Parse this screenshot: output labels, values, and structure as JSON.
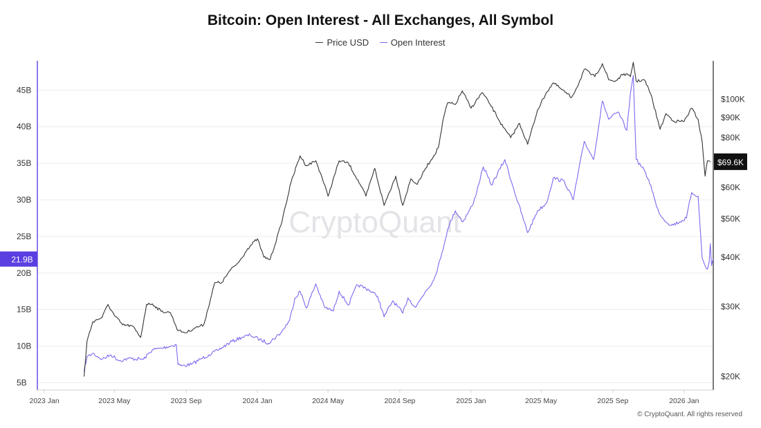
{
  "title": "Bitcoin: Open Interest - All Exchanges, All Symbol",
  "legend": [
    {
      "label": "Price USD",
      "color": "#333333"
    },
    {
      "label": "Open Interest",
      "color": "#7b68ee"
    }
  ],
  "watermark": "CryptoQuant",
  "footer": "© CryptoQuant. All rights reserved",
  "colors": {
    "price": "#333333",
    "oi": "#7b68ee",
    "oi_axis": "#6a4ce6",
    "oi_badge": "#5b3fe0",
    "price_badge": "#111111"
  },
  "chart_data": {
    "type": "line",
    "x_ticks": [
      "2023 Jan",
      "2023 May",
      "2023 Sep",
      "2024 Jan",
      "2024 May",
      "2024 Sep",
      "2025 Jan",
      "2025 May",
      "2025 Sep",
      "2026 Jan"
    ],
    "x_range": [
      "2022-12-20",
      "2026-02-20"
    ],
    "left_axis": {
      "series": "Open Interest",
      "ticks": [
        "5B",
        "10B",
        "15B",
        "20B",
        "25B",
        "30B",
        "35B",
        "40B",
        "45B"
      ],
      "tick_values": [
        5,
        10,
        15,
        20,
        25,
        30,
        35,
        40,
        45
      ],
      "range": [
        4,
        49
      ],
      "current": "21.9B"
    },
    "right_axis": {
      "series": "Price USD",
      "scale": "log",
      "ticks": [
        "$20K",
        "$30K",
        "$40K",
        "$50K",
        "$60K",
        "$80K",
        "$90K",
        "$100K"
      ],
      "tick_values": [
        20000,
        30000,
        40000,
        50000,
        60000,
        80000,
        90000,
        100000
      ],
      "range": [
        18500,
        125000
      ],
      "current": "$69.6K"
    },
    "series": [
      {
        "name": "Price USD",
        "axis": "right",
        "x": [
          "2023-03-10",
          "2023-03-15",
          "2023-03-25",
          "2023-04-10",
          "2023-04-20",
          "2023-05-01",
          "2023-05-15",
          "2023-06-01",
          "2023-06-15",
          "2023-06-25",
          "2023-07-05",
          "2023-07-20",
          "2023-08-05",
          "2023-08-18",
          "2023-09-01",
          "2023-09-15",
          "2023-10-01",
          "2023-10-20",
          "2023-11-01",
          "2023-11-15",
          "2023-12-01",
          "2023-12-15",
          "2024-01-01",
          "2024-01-12",
          "2024-01-23",
          "2024-02-10",
          "2024-02-28",
          "2024-03-14",
          "2024-03-25",
          "2024-04-10",
          "2024-04-20",
          "2024-05-01",
          "2024-05-20",
          "2024-06-05",
          "2024-06-25",
          "2024-07-05",
          "2024-07-20",
          "2024-08-05",
          "2024-08-25",
          "2024-09-06",
          "2024-09-20",
          "2024-10-01",
          "2024-10-15",
          "2024-10-29",
          "2024-11-06",
          "2024-11-15",
          "2024-11-22",
          "2024-12-05",
          "2024-12-17",
          "2025-01-01",
          "2025-01-20",
          "2025-02-03",
          "2025-02-25",
          "2025-03-10",
          "2025-03-25",
          "2025-04-08",
          "2025-04-25",
          "2025-05-10",
          "2025-05-22",
          "2025-06-05",
          "2025-06-22",
          "2025-07-05",
          "2025-07-14",
          "2025-08-01",
          "2025-08-14",
          "2025-08-25",
          "2025-09-05",
          "2025-09-20",
          "2025-10-01",
          "2025-10-06",
          "2025-10-11",
          "2025-10-25",
          "2025-11-05",
          "2025-11-21",
          "2025-12-01",
          "2025-12-15",
          "2026-01-01",
          "2026-01-14",
          "2026-01-25",
          "2026-02-01",
          "2026-02-06",
          "2026-02-10",
          "2026-02-15"
        ],
        "values": [
          20000,
          24500,
          27500,
          28200,
          30400,
          28500,
          27000,
          26800,
          25100,
          30400,
          30500,
          29200,
          29000,
          26100,
          25800,
          26500,
          27000,
          34500,
          34500,
          37000,
          39000,
          42000,
          44500,
          40000,
          39500,
          48000,
          62000,
          72000,
          68000,
          70000,
          64000,
          57000,
          70000,
          69000,
          61000,
          57000,
          67000,
          54000,
          64000,
          54000,
          63000,
          61000,
          67000,
          72000,
          75500,
          90000,
          98000,
          97000,
          105000,
          95000,
          104000,
          97000,
          85000,
          80000,
          87000,
          77000,
          94000,
          104000,
          110000,
          106000,
          101000,
          110000,
          119000,
          114000,
          123000,
          112000,
          111000,
          116000,
          114000,
          124000,
          111000,
          112000,
          103000,
          84000,
          92000,
          88000,
          88000,
          95000,
          89000,
          78000,
          64000,
          70000,
          69600
        ]
      },
      {
        "name": "Open Interest",
        "axis": "left",
        "x": [
          "2023-03-10",
          "2023-03-15",
          "2023-03-25",
          "2023-04-10",
          "2023-04-25",
          "2023-05-10",
          "2023-05-25",
          "2023-06-20",
          "2023-07-05",
          "2023-07-20",
          "2023-08-15",
          "2023-08-18",
          "2023-08-25",
          "2023-09-10",
          "2023-09-25",
          "2023-10-10",
          "2023-10-25",
          "2023-11-15",
          "2023-12-05",
          "2023-12-20",
          "2024-01-05",
          "2024-01-20",
          "2024-02-10",
          "2024-02-25",
          "2024-03-05",
          "2024-03-14",
          "2024-03-25",
          "2024-04-10",
          "2024-04-25",
          "2024-05-10",
          "2024-05-20",
          "2024-06-05",
          "2024-06-20",
          "2024-07-10",
          "2024-07-25",
          "2024-08-05",
          "2024-08-20",
          "2024-09-06",
          "2024-09-15",
          "2024-09-28",
          "2024-10-15",
          "2024-10-29",
          "2024-11-10",
          "2024-11-22",
          "2024-12-05",
          "2024-12-18",
          "2025-01-05",
          "2025-01-22",
          "2025-02-05",
          "2025-02-28",
          "2025-03-15",
          "2025-04-08",
          "2025-04-25",
          "2025-05-10",
          "2025-05-22",
          "2025-06-10",
          "2025-06-25",
          "2025-07-14",
          "2025-07-30",
          "2025-08-14",
          "2025-08-25",
          "2025-09-10",
          "2025-09-25",
          "2025-10-01",
          "2025-10-06",
          "2025-10-11",
          "2025-10-25",
          "2025-11-05",
          "2025-11-15",
          "2025-11-25",
          "2025-12-10",
          "2025-12-25",
          "2026-01-05",
          "2026-01-14",
          "2026-01-25",
          "2026-02-01",
          "2026-02-06",
          "2026-02-10",
          "2026-02-13",
          "2026-02-15",
          "2026-02-17",
          "2026-02-20"
        ],
        "values": [
          6.5,
          8.5,
          9.0,
          8.2,
          8.8,
          8.0,
          8.3,
          8.2,
          9.5,
          9.7,
          10.2,
          7.5,
          7.3,
          7.5,
          8.2,
          8.8,
          9.4,
          10.5,
          11.2,
          11.5,
          10.9,
          10.4,
          11.8,
          13.5,
          16.5,
          17.5,
          15.2,
          18.5,
          15.3,
          14.8,
          17.5,
          15.6,
          18.4,
          17.7,
          16.8,
          14.0,
          16.2,
          14.5,
          16.6,
          15.3,
          17.5,
          19.0,
          22.0,
          26.0,
          28.5,
          27.0,
          29.5,
          34.5,
          32.0,
          35.5,
          31.5,
          25.5,
          28.5,
          29.5,
          33.0,
          32.5,
          30.0,
          38.0,
          35.5,
          43.5,
          41.0,
          42.0,
          39.5,
          44.5,
          47.0,
          35.5,
          34.0,
          32.0,
          29.0,
          27.5,
          26.5,
          27.0,
          27.5,
          31.0,
          30.5,
          22.0,
          21.0,
          20.5,
          21.5,
          24.0,
          21.0,
          21.9
        ]
      }
    ]
  }
}
